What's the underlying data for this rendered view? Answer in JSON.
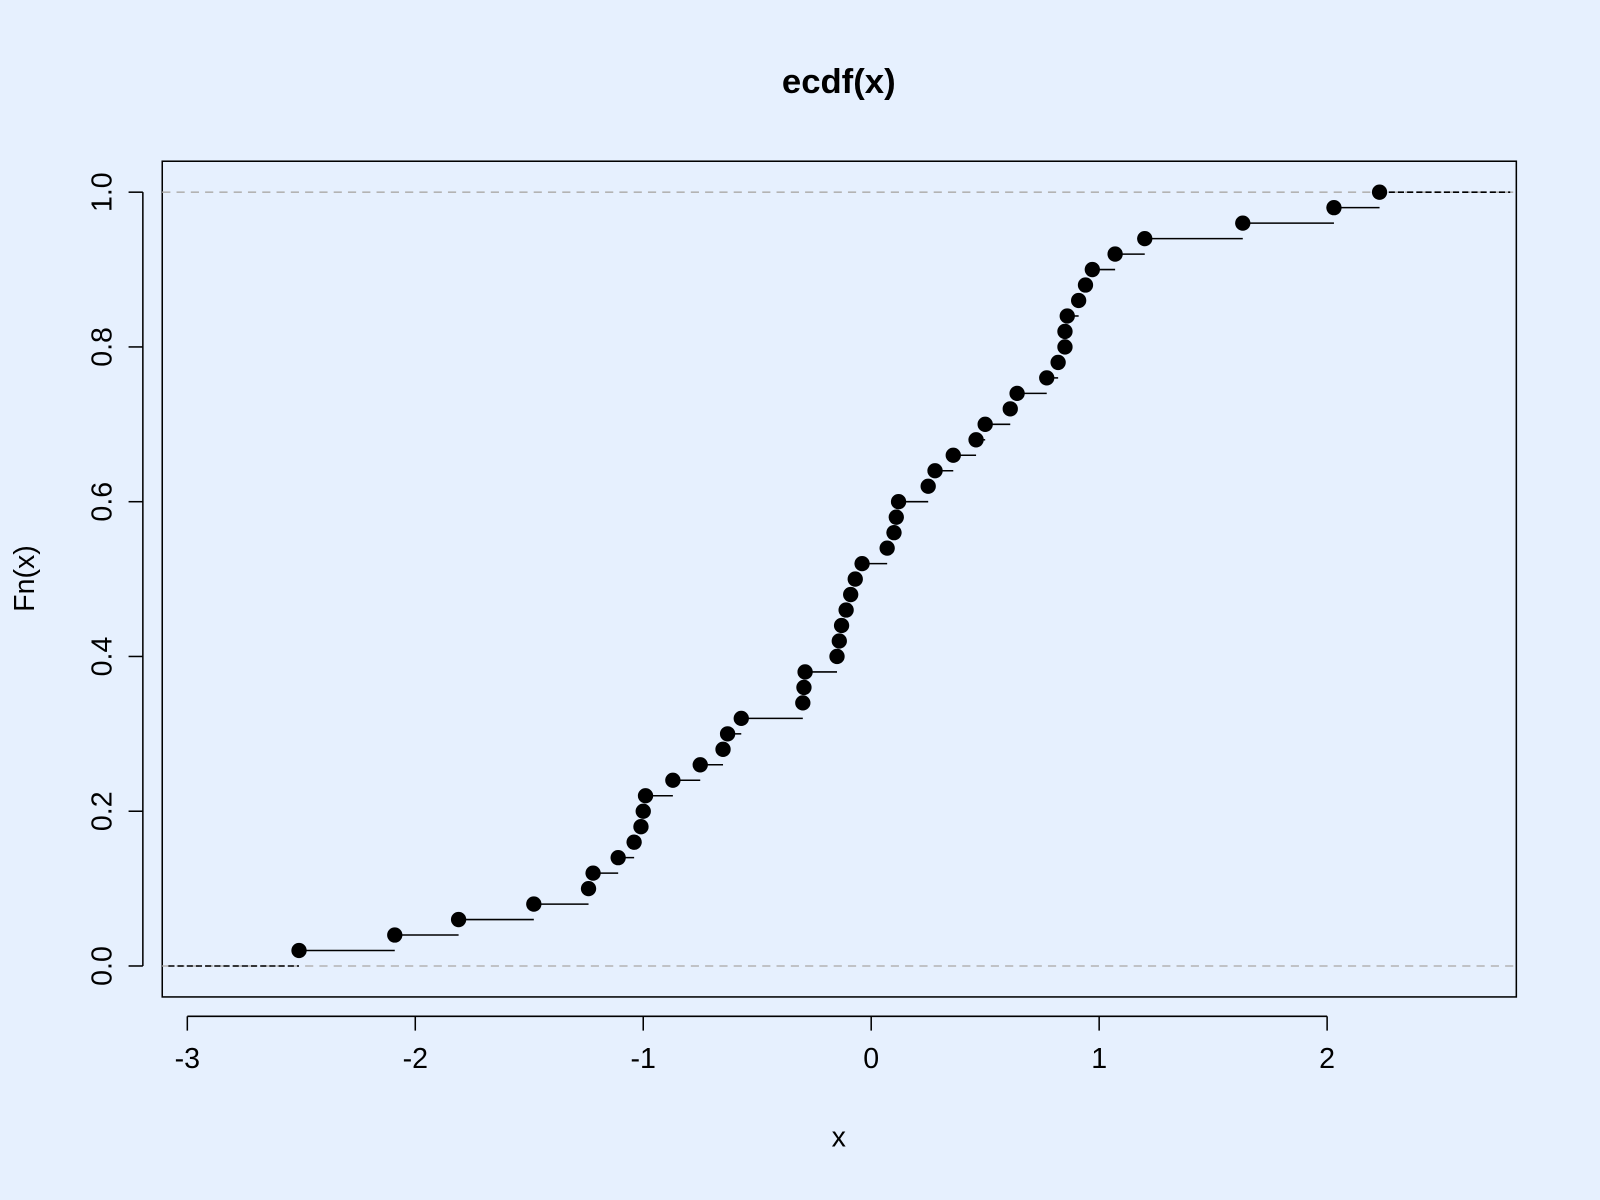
{
  "chart_data": {
    "type": "ecdf",
    "title": "ecdf(x)",
    "x_label": "x",
    "y_label": "Fn(x)",
    "x": [
      -2.51,
      -2.09,
      -1.81,
      -1.48,
      -1.24,
      -1.22,
      -1.11,
      -1.04,
      -1.01,
      -1.0,
      -0.99,
      -0.87,
      -0.75,
      -0.65,
      -0.63,
      -0.57,
      -0.3,
      -0.295,
      -0.29,
      -0.15,
      -0.14,
      -0.13,
      -0.11,
      -0.09,
      -0.07,
      -0.04,
      0.07,
      0.1,
      0.11,
      0.12,
      0.25,
      0.28,
      0.36,
      0.46,
      0.5,
      0.61,
      0.64,
      0.77,
      0.82,
      0.85,
      0.85,
      0.86,
      0.91,
      0.94,
      0.97,
      1.07,
      1.2,
      1.63,
      2.03,
      2.23
    ],
    "values": [
      0.02,
      0.04,
      0.06,
      0.08,
      0.1,
      0.12,
      0.14,
      0.16,
      0.18,
      0.2,
      0.22,
      0.24,
      0.26,
      0.28,
      0.3,
      0.32,
      0.34,
      0.36,
      0.38,
      0.4,
      0.42,
      0.44,
      0.46,
      0.48,
      0.5,
      0.52,
      0.54,
      0.56,
      0.58,
      0.6,
      0.62,
      0.64,
      0.66,
      0.68,
      0.7,
      0.72,
      0.74,
      0.76,
      0.78,
      0.8,
      0.82,
      0.84,
      0.86,
      0.88,
      0.9,
      0.92,
      0.94,
      0.96,
      0.98,
      1.0
    ],
    "color": "#000000",
    "xlim": [
      -3.11,
      2.83
    ],
    "ylim": [
      -0.04,
      1.04
    ],
    "xticks": [
      -3,
      -2,
      -1,
      0,
      1,
      2
    ],
    "yticks": [
      {
        "value": 0,
        "label": "0.0"
      },
      {
        "value": 0.2,
        "label": "0.2"
      },
      {
        "value": 0.4,
        "label": "0.4"
      },
      {
        "value": 0.6,
        "label": "0.6"
      },
      {
        "value": 0.8,
        "label": "0.8"
      },
      {
        "value": 1,
        "label": "1.0"
      }
    ],
    "hlines": [
      0,
      1
    ],
    "hline_color": "#b3b3b3"
  }
}
